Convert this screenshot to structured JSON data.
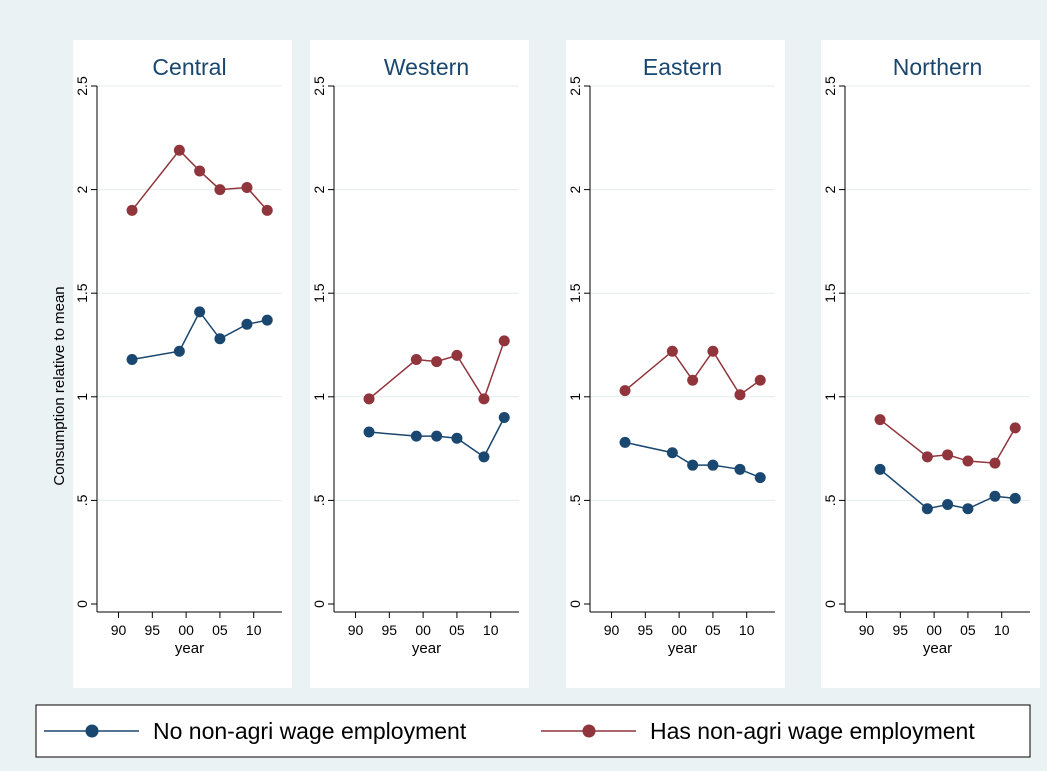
{
  "chart_data": {
    "type": "line",
    "ylabel": "Consumption relative to mean",
    "xlabel": "year",
    "ylim": [
      0,
      2.5
    ],
    "yticks": [
      0,
      0.5,
      1,
      1.5,
      2,
      2.5
    ],
    "ytick_labels": [
      "0",
      ".5",
      "1",
      "1.5",
      "2",
      "2.5"
    ],
    "xlim": [
      1988,
      2013
    ],
    "xticks": [
      1990,
      1995,
      2000,
      2005,
      2010
    ],
    "xtick_labels": [
      "90",
      "95",
      "00",
      "05",
      "10"
    ],
    "grid": true,
    "legend_position": "bottom",
    "series_names": [
      "No non-agri wage employment",
      "Has non-agri wage employment"
    ],
    "colors": {
      "no_wage": "#1a476f",
      "has_wage": "#90353b",
      "background": "#eaf2f3",
      "title": "#1a476f"
    },
    "x": [
      1992,
      1999,
      2002,
      2005,
      2009,
      2012
    ],
    "panels": [
      {
        "title": "Central",
        "series": [
          {
            "name": "No non-agri wage employment",
            "values": [
              1.18,
              1.22,
              1.41,
              1.28,
              1.35,
              1.37
            ]
          },
          {
            "name": "Has non-agri wage employment",
            "values": [
              1.9,
              2.19,
              2.09,
              2.0,
              2.01,
              1.9
            ]
          }
        ]
      },
      {
        "title": "Western",
        "series": [
          {
            "name": "No non-agri wage employment",
            "values": [
              0.83,
              0.81,
              0.81,
              0.8,
              0.71,
              0.9
            ]
          },
          {
            "name": "Has non-agri wage employment",
            "values": [
              0.99,
              1.18,
              1.17,
              1.2,
              0.99,
              1.27
            ]
          }
        ]
      },
      {
        "title": "Eastern",
        "series": [
          {
            "name": "No non-agri wage employment",
            "values": [
              0.78,
              0.73,
              0.67,
              0.67,
              0.65,
              0.61
            ]
          },
          {
            "name": "Has non-agri wage employment",
            "values": [
              1.03,
              1.22,
              1.08,
              1.22,
              1.01,
              1.08
            ]
          }
        ]
      },
      {
        "title": "Northern",
        "series": [
          {
            "name": "No non-agri wage employment",
            "values": [
              0.65,
              0.46,
              0.48,
              0.46,
              0.52,
              0.51
            ]
          },
          {
            "name": "Has non-agri wage employment",
            "values": [
              0.89,
              0.71,
              0.72,
              0.69,
              0.68,
              0.85
            ]
          }
        ]
      }
    ]
  }
}
